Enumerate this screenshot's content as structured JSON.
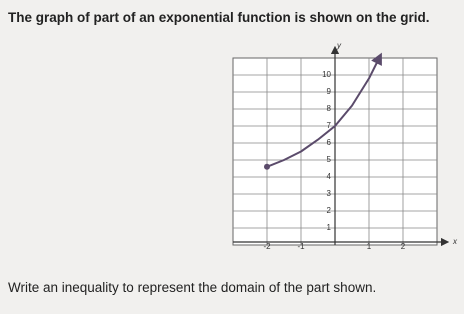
{
  "question": "The graph of part of an exponential function is shown on the grid.",
  "prompt": "Write an inequality to represent the domain of the part shown.",
  "chart_data": {
    "type": "line",
    "x_label": "x",
    "y_label": "y",
    "x": [
      -2,
      -1.5,
      -1,
      -0.5,
      0,
      0.5,
      1,
      1.3
    ],
    "values": [
      4.6,
      5,
      5.5,
      6.2,
      7,
      8.2,
      9.8,
      11
    ],
    "color": "#5b4b6b",
    "xlim": [
      -3,
      3
    ],
    "ylim": [
      0,
      11
    ],
    "xticks": [
      -2,
      -1,
      1,
      2
    ],
    "yticks": [
      1,
      2,
      3,
      4,
      5,
      6,
      7,
      8,
      9,
      10
    ],
    "grid": true
  }
}
